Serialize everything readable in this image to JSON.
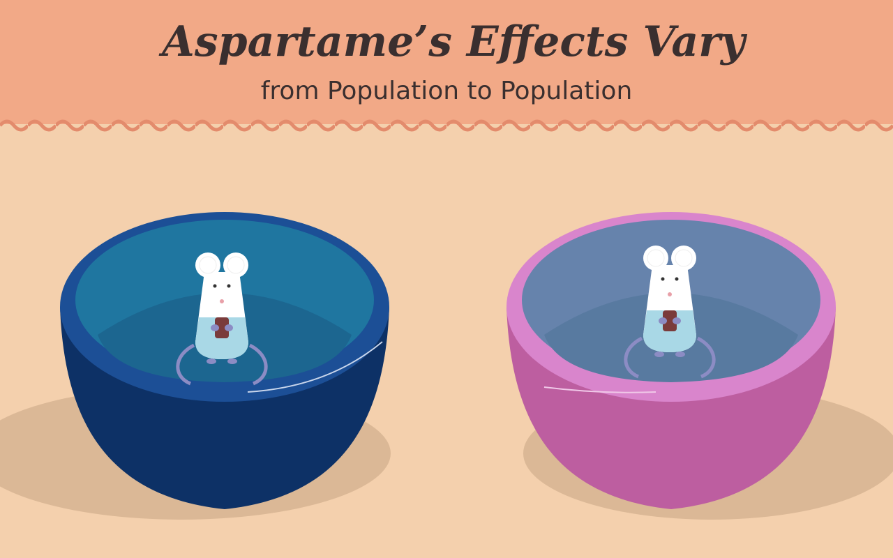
{
  "header": {
    "title": "Aspartame’s Effects Vary",
    "subtitle": "from Population to Population"
  }
}
